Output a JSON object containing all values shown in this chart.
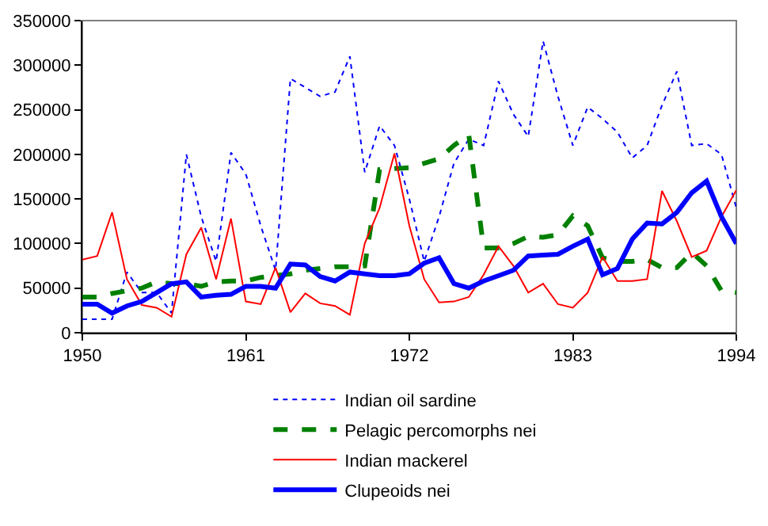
{
  "chart_data": {
    "type": "line",
    "x": [
      1950,
      1951,
      1952,
      1953,
      1954,
      1955,
      1956,
      1957,
      1958,
      1959,
      1960,
      1961,
      1962,
      1963,
      1964,
      1965,
      1966,
      1967,
      1968,
      1969,
      1970,
      1971,
      1972,
      1973,
      1974,
      1975,
      1976,
      1977,
      1978,
      1979,
      1980,
      1981,
      1982,
      1983,
      1984,
      1985,
      1986,
      1987,
      1988,
      1989,
      1990,
      1991,
      1992,
      1993,
      1994
    ],
    "series": [
      {
        "name": "Indian oil sardine",
        "color": "#0000ff",
        "line_style": "dotted",
        "values": [
          15000,
          15000,
          15000,
          68000,
          45000,
          45000,
          22000,
          200000,
          130000,
          80000,
          202000,
          178000,
          120000,
          70000,
          285000,
          275000,
          265000,
          270000,
          310000,
          180000,
          232000,
          210000,
          150000,
          80000,
          130000,
          190000,
          217000,
          210000,
          282000,
          245000,
          220000,
          327000,
          265000,
          210000,
          253000,
          240000,
          225000,
          196000,
          210000,
          255000,
          293000,
          210000,
          212000,
          200000,
          140000
        ]
      },
      {
        "name": "Pelagic percomorphs nei",
        "color": "#008000",
        "line_style": "dashed",
        "values": [
          40000,
          40000,
          44000,
          47000,
          50000,
          57000,
          55000,
          55000,
          52000,
          57000,
          58000,
          58000,
          62000,
          64000,
          66000,
          70000,
          72000,
          74000,
          74000,
          75000,
          183000,
          184000,
          185000,
          190000,
          195000,
          210000,
          222000,
          95000,
          95000,
          100000,
          108000,
          107000,
          110000,
          131000,
          120000,
          84000,
          80000,
          80000,
          82000,
          73000,
          73000,
          90000,
          75000,
          47000,
          45000
        ]
      },
      {
        "name": "Indian mackerel",
        "color": "#ff0000",
        "line_style": "solid",
        "values": [
          82000,
          86000,
          135000,
          60000,
          31000,
          28000,
          18000,
          88000,
          118000,
          60000,
          128000,
          35000,
          32000,
          73000,
          23000,
          44000,
          33000,
          30000,
          20000,
          100000,
          140000,
          201000,
          120000,
          60000,
          34000,
          35000,
          40000,
          65000,
          97000,
          75000,
          45000,
          55000,
          32000,
          28000,
          45000,
          85000,
          58000,
          58000,
          60000,
          159000,
          125000,
          85000,
          92000,
          130000,
          160000
        ]
      },
      {
        "name": "Clupeoids nei",
        "color": "#0000ff",
        "line_style": "solid",
        "values": [
          32000,
          32000,
          22000,
          30000,
          35000,
          45000,
          55000,
          57000,
          40000,
          42000,
          43000,
          52000,
          52000,
          50000,
          77000,
          76000,
          63000,
          58000,
          68000,
          66000,
          64000,
          64000,
          66000,
          78000,
          84000,
          55000,
          50000,
          58000,
          64000,
          70000,
          86000,
          87000,
          88000,
          97000,
          105000,
          65000,
          72000,
          105000,
          123000,
          122000,
          135000,
          157000,
          170000,
          130000,
          100000
        ]
      }
    ],
    "xlim": [
      1950,
      1994
    ],
    "xticks": [
      1950,
      1961,
      1972,
      1983,
      1994
    ],
    "ylim": [
      0,
      350000
    ],
    "yticks": [
      0,
      50000,
      100000,
      150000,
      200000,
      250000,
      300000,
      350000
    ],
    "grid": false,
    "legend": "bottom",
    "marker": "none"
  }
}
